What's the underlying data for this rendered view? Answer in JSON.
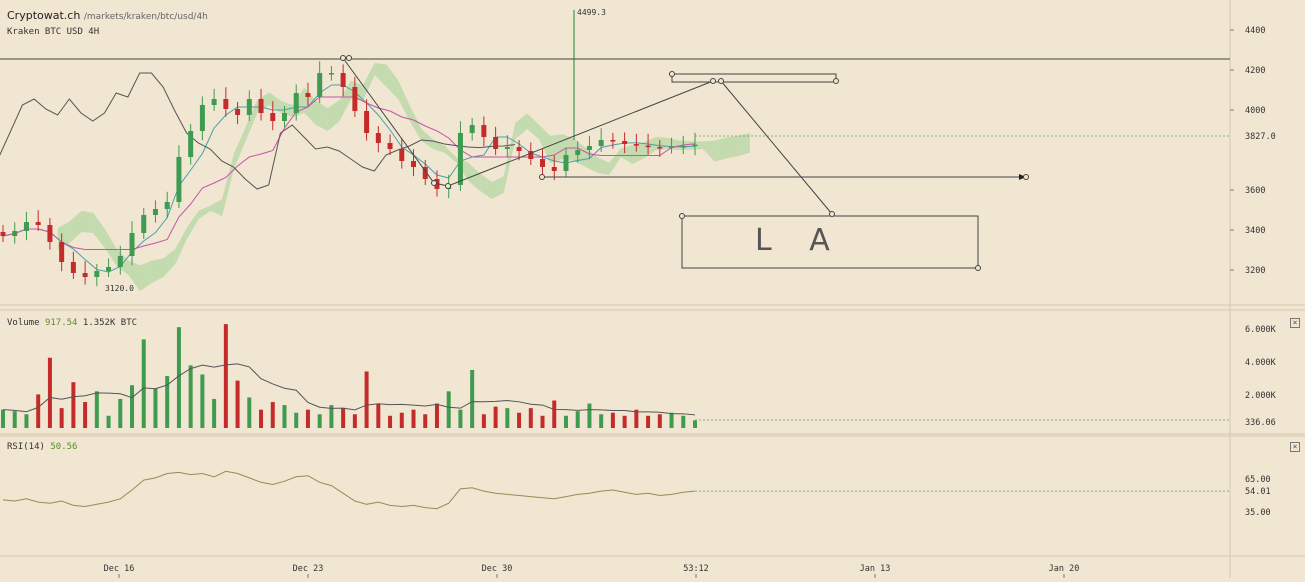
{
  "header": {
    "brand": "Cryptowat.ch",
    "url_path": "/markets/kraken/btc/usd/4h",
    "market_label": "Kraken BTC USD 4H"
  },
  "annotations": {
    "high_label": "4499.3",
    "low_label": "3120.0",
    "drawing_text": "L A"
  },
  "volume_panel": {
    "label": "Volume",
    "value1": "917.54",
    "value2": "1.352K BTC",
    "yticks": [
      "6.000K",
      "4.000K",
      "2.000K"
    ],
    "current": "336.06"
  },
  "rsi_panel": {
    "label": "RSI(14)",
    "value": "50.56",
    "yticks": [
      "65.00",
      "35.00"
    ],
    "current": "54.01"
  },
  "xaxis": {
    "labels": [
      "Dec 16",
      "Dec 23",
      "Dec 30",
      "53:12",
      "Jan 13",
      "Jan 20"
    ]
  },
  "colors": {
    "up": "#3e9b4f",
    "down": "#c62b2b",
    "kumo_bull": "#b6d6a3",
    "kumo_bear": "#e3aa98",
    "bg": "#f0e6d2"
  },
  "icons": {
    "panel_close": "close-icon"
  },
  "chart_data": {
    "type": "candlestick",
    "symbol": "BTC/USD",
    "exchange": "Kraken",
    "interval": "4H",
    "price_axis": {
      "ticks": [
        4400,
        4200,
        4000,
        3600,
        3400,
        3200
      ],
      "current_price": "3827.0"
    },
    "ohlc_approx": [
      3370,
      3395,
      3440,
      3425,
      3340,
      3240,
      3185,
      3165,
      3195,
      3215,
      3270,
      3385,
      3475,
      3505,
      3540,
      3765,
      3895,
      4025,
      4055,
      4005,
      3975,
      4055,
      3985,
      3945,
      3985,
      4085,
      4065,
      4185,
      4185,
      4115,
      3995,
      3885,
      3835,
      3805,
      3745,
      3715,
      3655,
      3605,
      3625,
      3885,
      3925,
      3865,
      3805,
      3815,
      3795,
      3755,
      3715,
      3695,
      3775,
      3800,
      3820,
      3850,
      3845,
      3830,
      3822,
      3815,
      3812,
      3818,
      3820,
      3827
    ],
    "volume_approx": [
      1.2,
      1.1,
      0.9,
      2.2,
      4.6,
      1.3,
      3.0,
      1.7,
      2.4,
      0.8,
      1.9,
      2.8,
      5.8,
      2.6,
      3.4,
      6.6,
      4.1,
      3.5,
      1.9,
      6.8,
      3.1,
      2.0,
      1.2,
      1.7,
      1.5,
      1.0,
      1.2,
      0.9,
      1.5,
      1.3,
      0.9,
      3.7,
      1.6,
      0.8,
      1.0,
      1.2,
      0.9,
      1.6,
      2.4,
      1.2,
      3.8,
      0.9,
      1.4,
      1.3,
      1.0,
      1.3,
      0.8,
      1.8,
      0.8,
      1.1,
      1.6,
      0.9,
      1.0,
      0.8,
      1.2,
      0.8,
      0.9,
      1.0,
      0.8,
      0.5
    ],
    "rsi_approx": [
      46,
      45,
      47,
      44,
      43,
      45,
      41,
      40,
      42,
      44,
      47,
      55,
      64,
      66,
      70,
      71,
      69,
      70,
      67,
      72,
      70,
      66,
      62,
      60,
      63,
      67,
      68,
      62,
      59,
      52,
      45,
      42,
      44,
      41,
      40,
      41,
      39,
      38,
      43,
      56,
      57,
      54,
      52,
      51,
      50,
      49,
      48,
      47,
      49,
      51,
      52,
      54,
      55,
      53,
      51,
      52,
      50,
      51,
      53,
      54
    ]
  }
}
